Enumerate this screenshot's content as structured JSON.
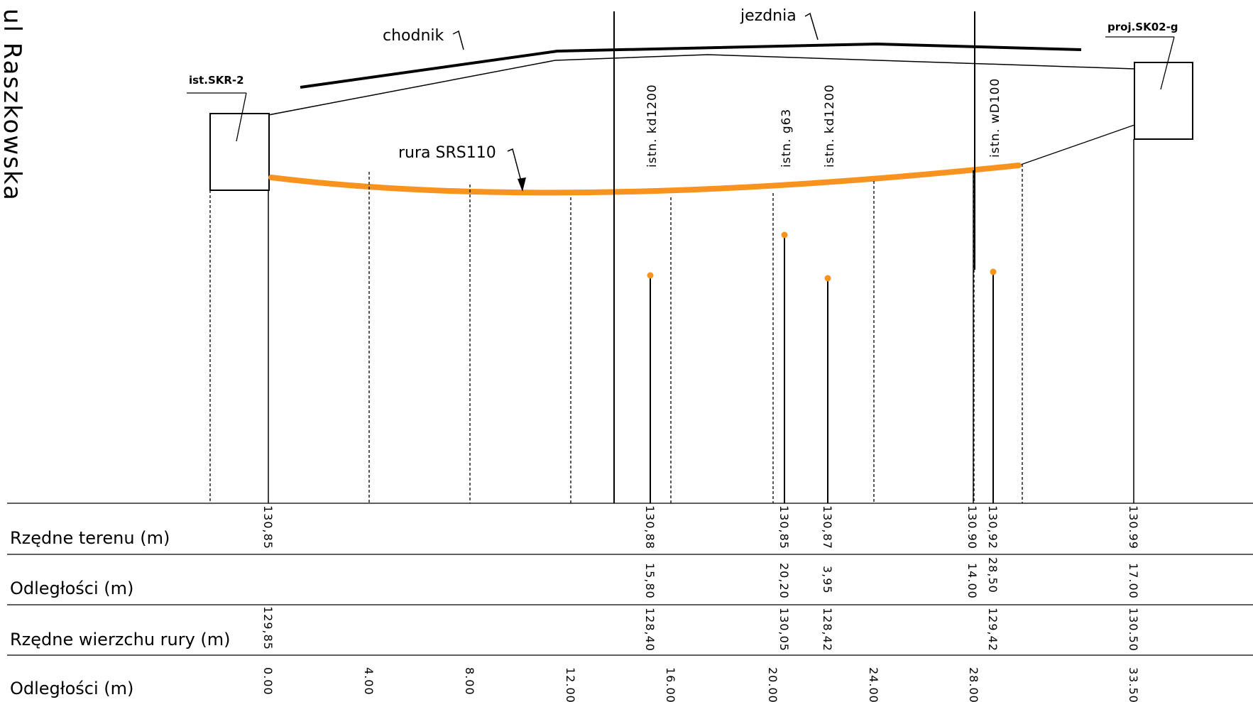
{
  "street_label": "ul Raszkowska",
  "manholes": {
    "left_label": "ist.SKR-2",
    "right_label": "proj.SK02-g"
  },
  "surface_labels": {
    "sidewalk": "chodnik",
    "roadway": "jezdnia",
    "pipe": "rura SRS110"
  },
  "utility_crossings": [
    {
      "label": "istn.  kd1200"
    },
    {
      "label": "istn.  g63"
    },
    {
      "label": "istn.  kd1200"
    },
    {
      "label": "istn.  wD100"
    }
  ],
  "table": {
    "row_labels": {
      "terrain": "Rzędne terenu (m)",
      "distances": "Odległości (m)",
      "pipe_top": "Rzędne wierzchu rury (m)",
      "chainage": "Odległości (m)"
    },
    "terrain_elevations": [
      "130,85",
      "130,88",
      "130,85",
      "130,87",
      "130.90",
      "130,92",
      "130.99"
    ],
    "distances": [
      "15,80",
      "20,20",
      "3,95",
      "14.00",
      "28,50",
      "17.00"
    ],
    "pipe_top_elevations": [
      "129,85",
      "128,40",
      "130,05",
      "128,42",
      "129,42",
      "130.50"
    ],
    "chainage": [
      "0.00",
      "4.00",
      "8.00",
      "12.00",
      "16.00",
      "20.00",
      "24.00",
      "28.00",
      "33.50"
    ]
  },
  "colors": {
    "pipe": "#f7931e",
    "line": "#000000"
  }
}
